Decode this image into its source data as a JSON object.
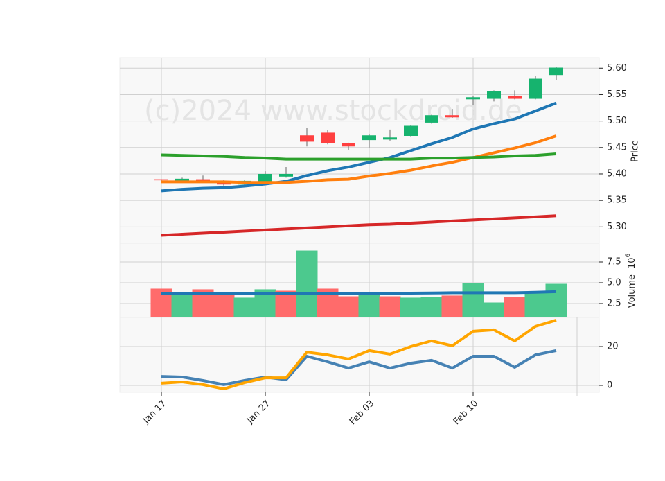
{
  "chart_data": [
    {
      "type": "candlestick",
      "watermark": "(c)2024 www.stockdroid.de",
      "ylabel": "Price",
      "ylim": [
        5.269,
        5.62
      ],
      "yticks": [
        {
          "value": 5.3,
          "label": "5.30"
        },
        {
          "value": 5.35,
          "label": "5.35"
        },
        {
          "value": 5.4,
          "label": "5.40"
        },
        {
          "value": 5.45,
          "label": "5.45"
        },
        {
          "value": 5.5,
          "label": "5.50"
        },
        {
          "value": 5.55,
          "label": "5.55"
        },
        {
          "value": 5.6,
          "label": "5.60"
        }
      ],
      "grid": true,
      "up_color": "#16b36e",
      "down_color": "#ff4040",
      "open": [
        5.39,
        5.387,
        5.39,
        5.387,
        5.38,
        5.385,
        5.395,
        5.473,
        5.478,
        5.458,
        5.464,
        5.465,
        5.472,
        5.497,
        5.511,
        5.541,
        5.542,
        5.548,
        5.542,
        5.587
      ],
      "high": [
        5.39,
        5.393,
        5.397,
        5.389,
        5.388,
        5.405,
        5.413,
        5.487,
        5.483,
        5.459,
        5.475,
        5.484,
        5.492,
        5.512,
        5.523,
        5.547,
        5.558,
        5.558,
        5.585,
        5.603
      ],
      "low": [
        5.387,
        5.386,
        5.385,
        5.378,
        5.375,
        5.383,
        5.393,
        5.452,
        5.456,
        5.445,
        5.45,
        5.463,
        5.471,
        5.495,
        5.506,
        5.53,
        5.537,
        5.541,
        5.541,
        5.577
      ],
      "close": [
        5.388,
        5.391,
        5.387,
        5.38,
        5.387,
        5.4,
        5.4,
        5.461,
        5.458,
        5.452,
        5.473,
        5.469,
        5.491,
        5.511,
        5.507,
        5.545,
        5.557,
        5.542,
        5.58,
        5.601
      ],
      "series": [
        {
          "color": "#1f77b4",
          "values": [
            5.368,
            5.371,
            5.373,
            5.374,
            5.377,
            5.381,
            5.386,
            5.397,
            5.406,
            5.413,
            5.422,
            5.431,
            5.444,
            5.457,
            5.469,
            5.485,
            5.495,
            5.504,
            5.519,
            5.534
          ]
        },
        {
          "color": "#ff7f0e",
          "values": [
            5.385,
            5.385,
            5.385,
            5.385,
            5.384,
            5.384,
            5.384,
            5.386,
            5.389,
            5.39,
            5.396,
            5.401,
            5.407,
            5.415,
            5.422,
            5.431,
            5.44,
            5.449,
            5.459,
            5.472
          ]
        },
        {
          "color": "#2ca02c",
          "values": [
            5.436,
            5.435,
            5.434,
            5.433,
            5.431,
            5.43,
            5.428,
            5.428,
            5.428,
            5.428,
            5.428,
            5.428,
            5.428,
            5.43,
            5.43,
            5.431,
            5.432,
            5.434,
            5.435,
            5.438
          ]
        },
        {
          "color": "#d62728",
          "values": [
            5.284,
            5.286,
            5.288,
            5.29,
            5.292,
            5.294,
            5.296,
            5.298,
            5.3,
            5.302,
            5.304,
            5.305,
            5.307,
            5.309,
            5.311,
            5.313,
            5.315,
            5.317,
            5.319,
            5.321
          ]
        }
      ]
    },
    {
      "type": "bar",
      "ylabel": "Volume",
      "offset_base": "10",
      "offset_exponent": "6",
      "ylim": [
        0.83,
        9.75
      ],
      "yticks": [
        2.5,
        {
          "value": 5,
          "label": "5.0"
        },
        7.5
      ],
      "grid": true,
      "values": [
        4.25,
        3.58,
        4.17,
        3.58,
        3.17,
        4.17,
        4.0,
        8.83,
        4.25,
        3.33,
        3.75,
        3.33,
        3.17,
        3.25,
        3.42,
        4.92,
        2.58,
        3.25,
        3.75,
        4.83
      ],
      "colors": [
        "#ff6b6b",
        "#4cc98e",
        "#ff6b6b",
        "#ff6b6b",
        "#4cc98e",
        "#4cc98e",
        "#ff6b6b",
        "#4cc98e",
        "#ff6b6b",
        "#ff6b6b",
        "#4cc98e",
        "#ff6b6b",
        "#4cc98e",
        "#4cc98e",
        "#ff6b6b",
        "#4cc98e",
        "#4cc98e",
        "#ff6b6b",
        "#4cc98e",
        "#4cc98e"
      ],
      "series": [
        {
          "color": "#1f77b4",
          "values": [
            3.67,
            3.67,
            3.67,
            3.67,
            3.67,
            3.67,
            3.67,
            3.72,
            3.75,
            3.75,
            3.75,
            3.75,
            3.75,
            3.77,
            3.8,
            3.8,
            3.8,
            3.8,
            3.85,
            3.92
          ]
        }
      ]
    },
    {
      "type": "line",
      "ylim": [
        -3.57,
        35
      ],
      "yticks": [
        0,
        20
      ],
      "grid": true,
      "categories": [
        "Jan 17",
        null,
        null,
        null,
        null,
        "Jan 27",
        null,
        null,
        null,
        null,
        "Feb 03",
        null,
        null,
        null,
        null,
        "Feb 10",
        null,
        null,
        null,
        null
      ],
      "series": [
        {
          "color": "#4682b4",
          "values": [
            4.6,
            4.3,
            2.5,
            0.4,
            2.5,
            4.3,
            2.9,
            15.0,
            12.1,
            8.9,
            12.1,
            8.9,
            11.4,
            12.9,
            8.9,
            15.0,
            15.0,
            9.3,
            15.7,
            17.9
          ]
        },
        {
          "color": "#ffa500",
          "values": [
            1.1,
            1.8,
            0.4,
            -1.8,
            1.4,
            3.9,
            3.9,
            17.1,
            15.7,
            13.6,
            17.9,
            16.1,
            20.0,
            22.9,
            20.4,
            27.9,
            28.6,
            22.9,
            30.4,
            33.6
          ]
        }
      ]
    }
  ]
}
